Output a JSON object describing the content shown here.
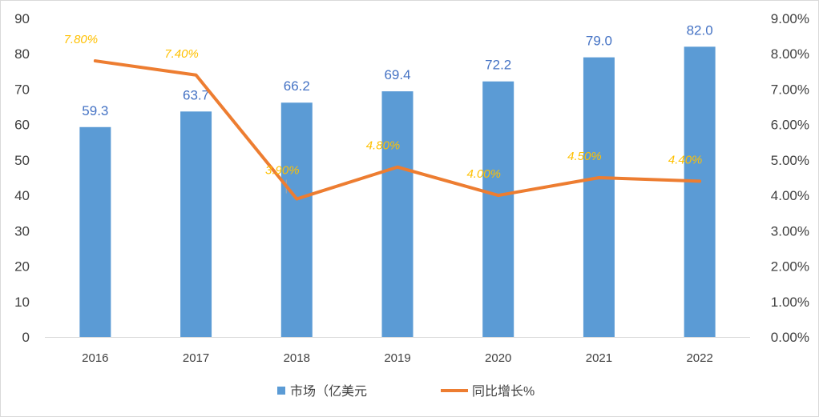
{
  "chart_data": {
    "type": "bar",
    "categories": [
      "2016",
      "2017",
      "2018",
      "2019",
      "2020",
      "2021",
      "2022"
    ],
    "series": [
      {
        "name": "市场（亿美元",
        "type": "bar",
        "axis": "left",
        "color": "#5b9bd5",
        "values": [
          59.3,
          63.7,
          66.2,
          69.4,
          72.2,
          79.0,
          82.0
        ],
        "labels": [
          "59.3",
          "63.7",
          "66.2",
          "69.4",
          "72.2",
          "79.0",
          "82.0"
        ],
        "label_color": "#4472c4"
      },
      {
        "name": "同比增长%",
        "type": "line",
        "axis": "right",
        "color": "#ed7d31",
        "values": [
          7.8,
          7.4,
          3.9,
          4.8,
          4.0,
          4.5,
          4.4
        ],
        "labels": [
          "7.80%",
          "7.40%",
          "3.90%",
          "4.80%",
          "4.00%",
          "4.50%",
          "4.40%"
        ],
        "label_color": "#ffc000"
      }
    ],
    "y_left": {
      "min": 0,
      "max": 90,
      "step": 10,
      "ticks": [
        "0",
        "10",
        "20",
        "30",
        "40",
        "50",
        "60",
        "70",
        "80",
        "90"
      ]
    },
    "y_right": {
      "min": 0,
      "max": 9,
      "step": 1,
      "ticks": [
        "0.00%",
        "1.00%",
        "2.00%",
        "3.00%",
        "4.00%",
        "5.00%",
        "6.00%",
        "7.00%",
        "8.00%",
        "9.00%"
      ]
    },
    "grid": false,
    "legend_position": "bottom"
  }
}
